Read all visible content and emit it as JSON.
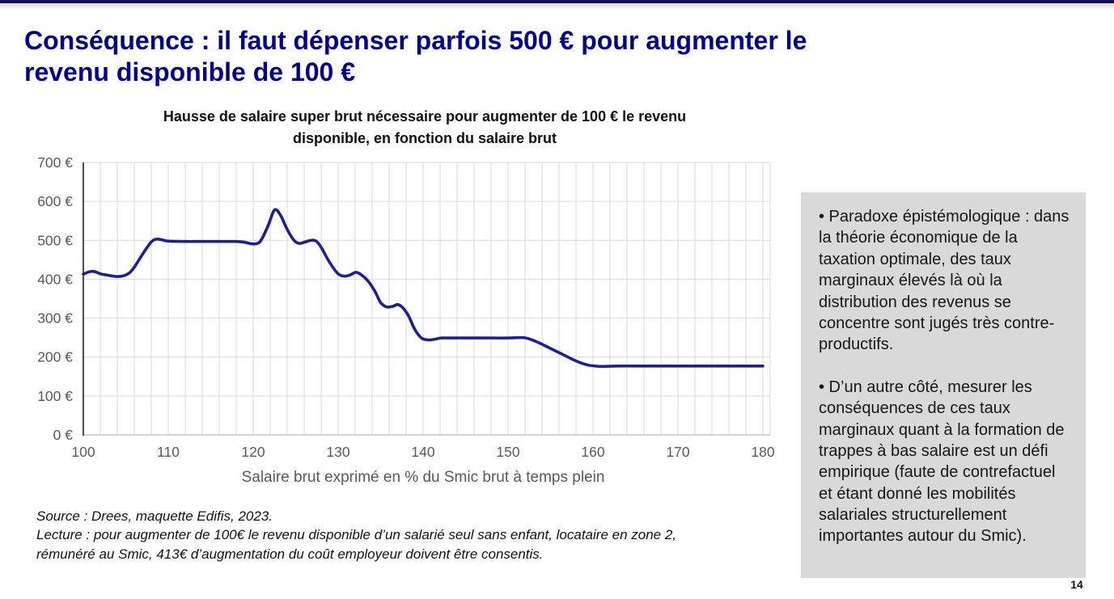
{
  "page": {
    "accent_color": "#000091",
    "page_number": "14"
  },
  "header": {
    "title": "Conséquence : il faut dépenser parfois 500 € pour augmenter le revenu disponible de 100 €",
    "title_lines": [
      "Conséquence : il faut dépenser parfois 500 € pour augmenter le",
      "revenu disponible de 100 €"
    ]
  },
  "chart_title_lines": [
    "Hausse de salaire super brut nécessaire pour augmenter de 100 € le revenu",
    "disponible, en fonction du salaire brut"
  ],
  "chart_data": {
    "type": "line",
    "title": "Hausse de salaire super brut nécessaire pour augmenter de 100 € le revenu disponible, en fonction du salaire brut",
    "xlabel": "Salaire brut exprimé en % du Smic brut à temps plein",
    "ylabel": "",
    "xlim": [
      100,
      180
    ],
    "ylim": [
      0,
      700
    ],
    "grid": true,
    "minor_x_step": 2,
    "grid_color": "#d9d9d9",
    "tick_color": "#595959",
    "x_ticks": [
      100,
      110,
      120,
      130,
      140,
      150,
      160,
      170,
      180
    ],
    "y_ticks": [
      {
        "value": 0,
        "label": "0 €"
      },
      {
        "value": 100,
        "label": "100 €"
      },
      {
        "value": 200,
        "label": "200 €"
      },
      {
        "value": 300,
        "label": "300 €"
      },
      {
        "value": 400,
        "label": "400 €"
      },
      {
        "value": 500,
        "label": "500 €"
      },
      {
        "value": 600,
        "label": "600 €"
      },
      {
        "value": 700,
        "label": "700 €"
      }
    ],
    "series": [
      {
        "name": "Hausse de salaire super brut nécessaire (€)",
        "color": "#1e1e96",
        "points": [
          [
            100,
            413
          ],
          [
            100.7,
            419
          ],
          [
            101.3,
            420
          ],
          [
            102,
            414
          ],
          [
            103,
            410
          ],
          [
            104,
            407
          ],
          [
            105,
            411
          ],
          [
            105.8,
            425
          ],
          [
            107,
            465
          ],
          [
            108,
            496
          ],
          [
            108.7,
            503
          ],
          [
            109.5,
            500
          ],
          [
            110,
            498
          ],
          [
            112,
            497
          ],
          [
            114,
            497
          ],
          [
            116,
            497
          ],
          [
            118,
            497
          ],
          [
            119,
            495
          ],
          [
            119.8,
            491
          ],
          [
            120.5,
            492
          ],
          [
            121,
            503
          ],
          [
            121.8,
            540
          ],
          [
            122.5,
            578
          ],
          [
            123.2,
            565
          ],
          [
            124,
            528
          ],
          [
            124.8,
            500
          ],
          [
            125.4,
            492
          ],
          [
            126,
            495
          ],
          [
            126.8,
            500
          ],
          [
            127.4,
            498
          ],
          [
            128,
            482
          ],
          [
            129,
            443
          ],
          [
            130,
            414
          ],
          [
            130.8,
            408
          ],
          [
            131.5,
            412
          ],
          [
            132.1,
            418
          ],
          [
            132.7,
            412
          ],
          [
            133.5,
            396
          ],
          [
            134.3,
            370
          ],
          [
            135,
            340
          ],
          [
            135.7,
            329
          ],
          [
            136.4,
            330
          ],
          [
            137,
            335
          ],
          [
            137.6,
            327
          ],
          [
            138.3,
            305
          ],
          [
            139,
            272
          ],
          [
            139.8,
            249
          ],
          [
            140.6,
            244
          ],
          [
            141.4,
            246
          ],
          [
            142.2,
            249
          ],
          [
            144,
            249
          ],
          [
            146,
            249
          ],
          [
            148,
            249
          ],
          [
            150,
            249
          ],
          [
            151.5,
            250
          ],
          [
            152.3,
            248
          ],
          [
            153.5,
            238
          ],
          [
            155,
            222
          ],
          [
            156.5,
            206
          ],
          [
            158,
            190
          ],
          [
            159.3,
            180
          ],
          [
            160.3,
            177
          ],
          [
            161,
            176
          ],
          [
            163,
            177
          ],
          [
            166,
            177
          ],
          [
            170,
            177
          ],
          [
            174,
            177
          ],
          [
            178,
            177
          ],
          [
            180,
            177
          ]
        ]
      }
    ]
  },
  "notes": {
    "source": "Source : Drees, maquette Edifis, 2023.",
    "lecture": "Lecture : pour augmenter de 100€ le revenu disponible d’un salarié seul sans enfant, locataire en zone 2, rémunéré au Smic, 413€ d’augmentation du coût employeur doivent être consentis.",
    "lines": [
      "Source : Drees, maquette Edifis, 2023.",
      "Lecture : pour augmenter de 100€ le revenu disponible d’un salarié seul sans enfant, locataire en zone 2,",
      "rémunéré au Smic, 413€ d’augmentation du coût employeur doivent être consentis."
    ]
  },
  "sidebar": {
    "background": "#d9d9d9",
    "bullets": [
      "• Paradoxe épistémologique : dans la théorie économique de la taxation optimale, des taux marginaux élevés là où la distribution des revenus se concentre sont jugés très contre-productifs.",
      "• D’un autre côté, mesurer les conséquences de ces taux marginaux quant à la formation de trappes à bas salaire est un défi empirique (faute de contrefactuel et étant donné les mobilités salariales structurellement importantes autour du Smic)."
    ]
  }
}
